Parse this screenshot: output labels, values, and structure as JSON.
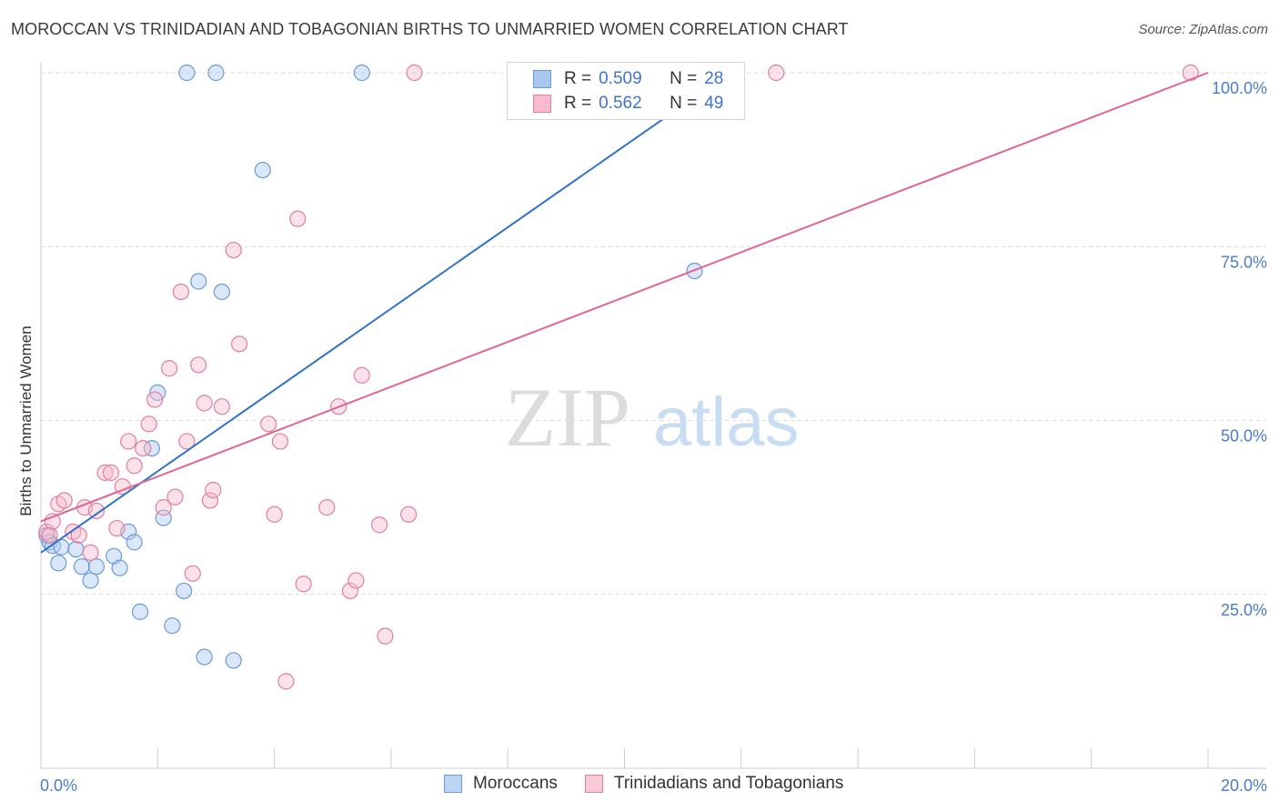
{
  "title": "MOROCCAN VS TRINIDADIAN AND TOBAGONIAN BIRTHS TO UNMARRIED WOMEN CORRELATION CHART",
  "source": "Source: ZipAtlas.com",
  "watermark": {
    "zip": "ZIP",
    "atlas": "atlas"
  },
  "legend": {
    "r_label": "R =",
    "n_label": "N =",
    "rows": [
      {
        "r": "0.509",
        "n": "28",
        "color": "#a9c8ef",
        "border": "#6a9ad8"
      },
      {
        "r": "0.562",
        "n": "49",
        "color": "#f6bccd",
        "border": "#e07fa0"
      }
    ]
  },
  "bottom_legend": [
    {
      "label": "Moroccans",
      "color": "#bcd5f2",
      "border": "#6a9ad8"
    },
    {
      "label": "Trinidadians and Tobagonians",
      "color": "#f9c9d6",
      "border": "#e07fa0"
    }
  ],
  "chart_data": {
    "type": "scatter",
    "title": "MOROCCAN VS TRINIDADIAN AND TOBAGONIAN BIRTHS TO UNMARRIED WOMEN CORRELATION CHART",
    "xlabel": "",
    "ylabel": "Births to Unmarried Women",
    "xlim": [
      0,
      20
    ],
    "ylim": [
      0,
      100
    ],
    "x_tick_labels": [
      "0.0%",
      "20.0%"
    ],
    "y_tick_labels": [
      "25.0%",
      "50.0%",
      "75.0%",
      "100.0%"
    ],
    "y_ticks": [
      25,
      50,
      75,
      100
    ],
    "x_minor_ticks": [
      0,
      2,
      4,
      6,
      8,
      10,
      12,
      14,
      16,
      18,
      20
    ],
    "series": [
      {
        "name": "Moroccans",
        "color": "#6a9ad8",
        "fill": "rgba(172,202,240,0.45)",
        "line_color": "#3072c9",
        "trend": {
          "x0": 0.0,
          "y0": 31.0,
          "x1": 11.8,
          "y1": 100.0
        },
        "points": [
          [
            0.1,
            33.5
          ],
          [
            0.15,
            32.5
          ],
          [
            0.2,
            32.0
          ],
          [
            0.3,
            29.5
          ],
          [
            0.35,
            31.8
          ],
          [
            0.6,
            31.5
          ],
          [
            0.7,
            29.0
          ],
          [
            0.85,
            27.0
          ],
          [
            0.95,
            29.0
          ],
          [
            1.25,
            30.5
          ],
          [
            1.35,
            28.8
          ],
          [
            1.5,
            34.0
          ],
          [
            1.6,
            32.5
          ],
          [
            1.7,
            22.5
          ],
          [
            1.9,
            46.0
          ],
          [
            2.0,
            54.0
          ],
          [
            2.1,
            36.0
          ],
          [
            2.25,
            20.5
          ],
          [
            2.45,
            25.5
          ],
          [
            2.5,
            100.0
          ],
          [
            2.7,
            70.0
          ],
          [
            2.8,
            16.0
          ],
          [
            3.0,
            100.0
          ],
          [
            3.1,
            68.5
          ],
          [
            3.3,
            15.5
          ],
          [
            3.8,
            86.0
          ],
          [
            5.5,
            100.0
          ],
          [
            11.2,
            71.5
          ]
        ]
      },
      {
        "name": "Trinidadians and Tobagonians",
        "color": "#e07fa0",
        "fill": "rgba(246,188,205,0.45)",
        "line_color": "#e0658f",
        "trend": {
          "x0": 0.0,
          "y0": 35.5,
          "x1": 20.0,
          "y1": 100.0
        },
        "points": [
          [
            0.1,
            34.0
          ],
          [
            0.15,
            33.5
          ],
          [
            0.2,
            35.5
          ],
          [
            0.3,
            38.0
          ],
          [
            0.4,
            38.5
          ],
          [
            0.55,
            34.0
          ],
          [
            0.65,
            33.5
          ],
          [
            0.75,
            37.5
          ],
          [
            0.85,
            31.0
          ],
          [
            0.95,
            37.0
          ],
          [
            1.1,
            42.5
          ],
          [
            1.2,
            42.5
          ],
          [
            1.3,
            34.5
          ],
          [
            1.4,
            40.5
          ],
          [
            1.5,
            47.0
          ],
          [
            1.6,
            43.5
          ],
          [
            1.75,
            46.0
          ],
          [
            1.85,
            49.5
          ],
          [
            1.95,
            53.0
          ],
          [
            2.1,
            37.5
          ],
          [
            2.2,
            57.5
          ],
          [
            2.3,
            39.0
          ],
          [
            2.4,
            68.5
          ],
          [
            2.5,
            47.0
          ],
          [
            2.6,
            28.0
          ],
          [
            2.7,
            58.0
          ],
          [
            2.8,
            52.5
          ],
          [
            2.9,
            38.5
          ],
          [
            2.95,
            40.0
          ],
          [
            3.1,
            52.0
          ],
          [
            3.3,
            74.5
          ],
          [
            3.4,
            61.0
          ],
          [
            3.9,
            49.5
          ],
          [
            4.0,
            36.5
          ],
          [
            4.1,
            47.0
          ],
          [
            4.2,
            12.5
          ],
          [
            4.4,
            79.0
          ],
          [
            4.5,
            26.5
          ],
          [
            4.9,
            37.5
          ],
          [
            5.1,
            52.0
          ],
          [
            5.3,
            25.5
          ],
          [
            5.4,
            27.0
          ],
          [
            5.5,
            56.5
          ],
          [
            5.8,
            35.0
          ],
          [
            5.9,
            19.0
          ],
          [
            6.3,
            36.5
          ],
          [
            6.4,
            100.0
          ],
          [
            12.6,
            100.0
          ],
          [
            19.7,
            100.0
          ]
        ]
      }
    ]
  }
}
